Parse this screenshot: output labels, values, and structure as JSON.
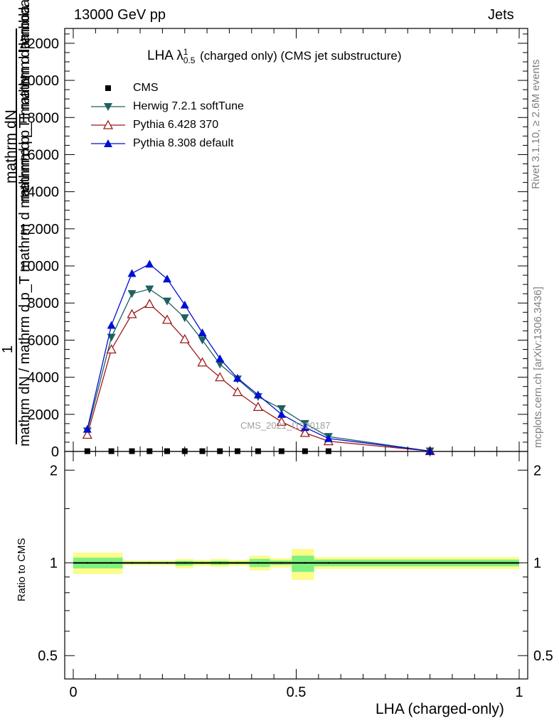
{
  "header": {
    "left": "13000 GeV pp",
    "right": "Jets"
  },
  "plot_title": {
    "main": "LHA λ",
    "sup": "1",
    "sub": "0.5",
    "rest": " (charged only) (CMS jet substructure)"
  },
  "ylabel": {
    "numerator": "mathrm dN",
    "numerator_2": "mathrm d p_T mathrm d lambda",
    "one": "1",
    "denominator": "mathrm dN / mathrm d p_T mathrm d mathrm d p_T mathrm d lambda"
  },
  "ratio_ylabel": "Ratio to CMS",
  "xlabel": "LHA (charged-only)",
  "side_texts": {
    "rivet": "Rivet 3.1.10, ≥ 2.6M events",
    "mcplots": "mcplots.cern.ch [arXiv:1306.3436]"
  },
  "watermark": "CMS_2021_I1920187",
  "colors": {
    "cms": "#000000",
    "herwig": "#1f6060",
    "pythia6": "#a01818",
    "pythia8": "#0010d0",
    "band_inner": "#7ef07e",
    "band_outer": "#fcfc8a"
  },
  "chart_data": [
    {
      "type": "line",
      "xlim": [
        0,
        1
      ],
      "ylim": [
        0,
        22800
      ],
      "yticks": [
        2000,
        4000,
        6000,
        8000,
        10000,
        12000,
        14000,
        16000,
        18000,
        20000,
        22000
      ],
      "ytick_labels": [
        "2000",
        "4000",
        "6000",
        "8000",
        "10000",
        "12000",
        "14000",
        "16000",
        "18000",
        "20000",
        "22000"
      ],
      "x": [
        0.0316,
        0.0855,
        0.1316,
        0.1711,
        0.2105,
        0.25,
        0.2895,
        0.3289,
        0.3684,
        0.4145,
        0.4671,
        0.5197,
        0.5724,
        0.8
      ],
      "series": [
        {
          "name": "CMS",
          "marker": "square",
          "values": [
            15,
            15,
            15,
            15,
            15,
            15,
            15,
            15,
            15,
            15,
            15,
            15,
            15,
            null
          ]
        },
        {
          "name": "Herwig 7.2.1 softTune",
          "marker": "triangle-down",
          "values": [
            1100,
            6150,
            8500,
            8750,
            8100,
            7200,
            6000,
            4700,
            3900,
            2950,
            2300,
            1500,
            800,
            20
          ]
        },
        {
          "name": "Pythia 6.428 370",
          "marker": "triangle-up-open",
          "values": [
            900,
            5500,
            7400,
            7950,
            7100,
            6050,
            4800,
            4000,
            3200,
            2400,
            1600,
            1000,
            550,
            20
          ]
        },
        {
          "name": "Pythia 8.308 default",
          "marker": "triangle-up",
          "values": [
            1200,
            6800,
            9600,
            10100,
            9300,
            7900,
            6400,
            5000,
            3950,
            3050,
            2000,
            1300,
            700,
            20
          ]
        }
      ]
    },
    {
      "type": "area",
      "title": "Ratio to CMS",
      "xlim": [
        0,
        1
      ],
      "ylim": [
        0.42,
        2.3
      ],
      "yscale": "log",
      "yticks": [
        0.5,
        1,
        2
      ],
      "ytick_labels": [
        "0.5",
        "1",
        "2"
      ],
      "xticks": [
        0,
        0.5,
        1
      ],
      "xtick_labels": [
        "0",
        "0.5",
        "1"
      ],
      "bins": [
        {
          "x0": 0.0,
          "x1": 0.111,
          "inner": [
            0.96,
            1.04
          ],
          "outer": [
            0.92,
            1.08
          ]
        },
        {
          "x0": 0.111,
          "x1": 0.229,
          "inner": [
            0.992,
            1.008
          ],
          "outer": [
            0.982,
            1.018
          ]
        },
        {
          "x0": 0.229,
          "x1": 0.269,
          "inner": [
            0.98,
            1.015
          ],
          "outer": [
            0.96,
            1.03
          ]
        },
        {
          "x0": 0.269,
          "x1": 0.308,
          "inner": [
            0.99,
            1.01
          ],
          "outer": [
            0.978,
            1.022
          ]
        },
        {
          "x0": 0.308,
          "x1": 0.349,
          "inner": [
            0.985,
            1.015
          ],
          "outer": [
            0.97,
            1.03
          ]
        },
        {
          "x0": 0.349,
          "x1": 0.395,
          "inner": [
            0.99,
            1.01
          ],
          "outer": [
            0.978,
            1.022
          ]
        },
        {
          "x0": 0.395,
          "x1": 0.441,
          "inner": [
            0.97,
            1.03
          ],
          "outer": [
            0.945,
            1.055
          ]
        },
        {
          "x0": 0.441,
          "x1": 0.49,
          "inner": [
            0.985,
            1.018
          ],
          "outer": [
            0.965,
            1.035
          ]
        },
        {
          "x0": 0.49,
          "x1": 0.54,
          "inner": [
            0.935,
            1.055
          ],
          "outer": [
            0.88,
            1.11
          ]
        },
        {
          "x0": 0.54,
          "x1": 1.0,
          "inner": [
            0.975,
            1.025
          ],
          "outer": [
            0.955,
            1.045
          ]
        }
      ]
    }
  ]
}
